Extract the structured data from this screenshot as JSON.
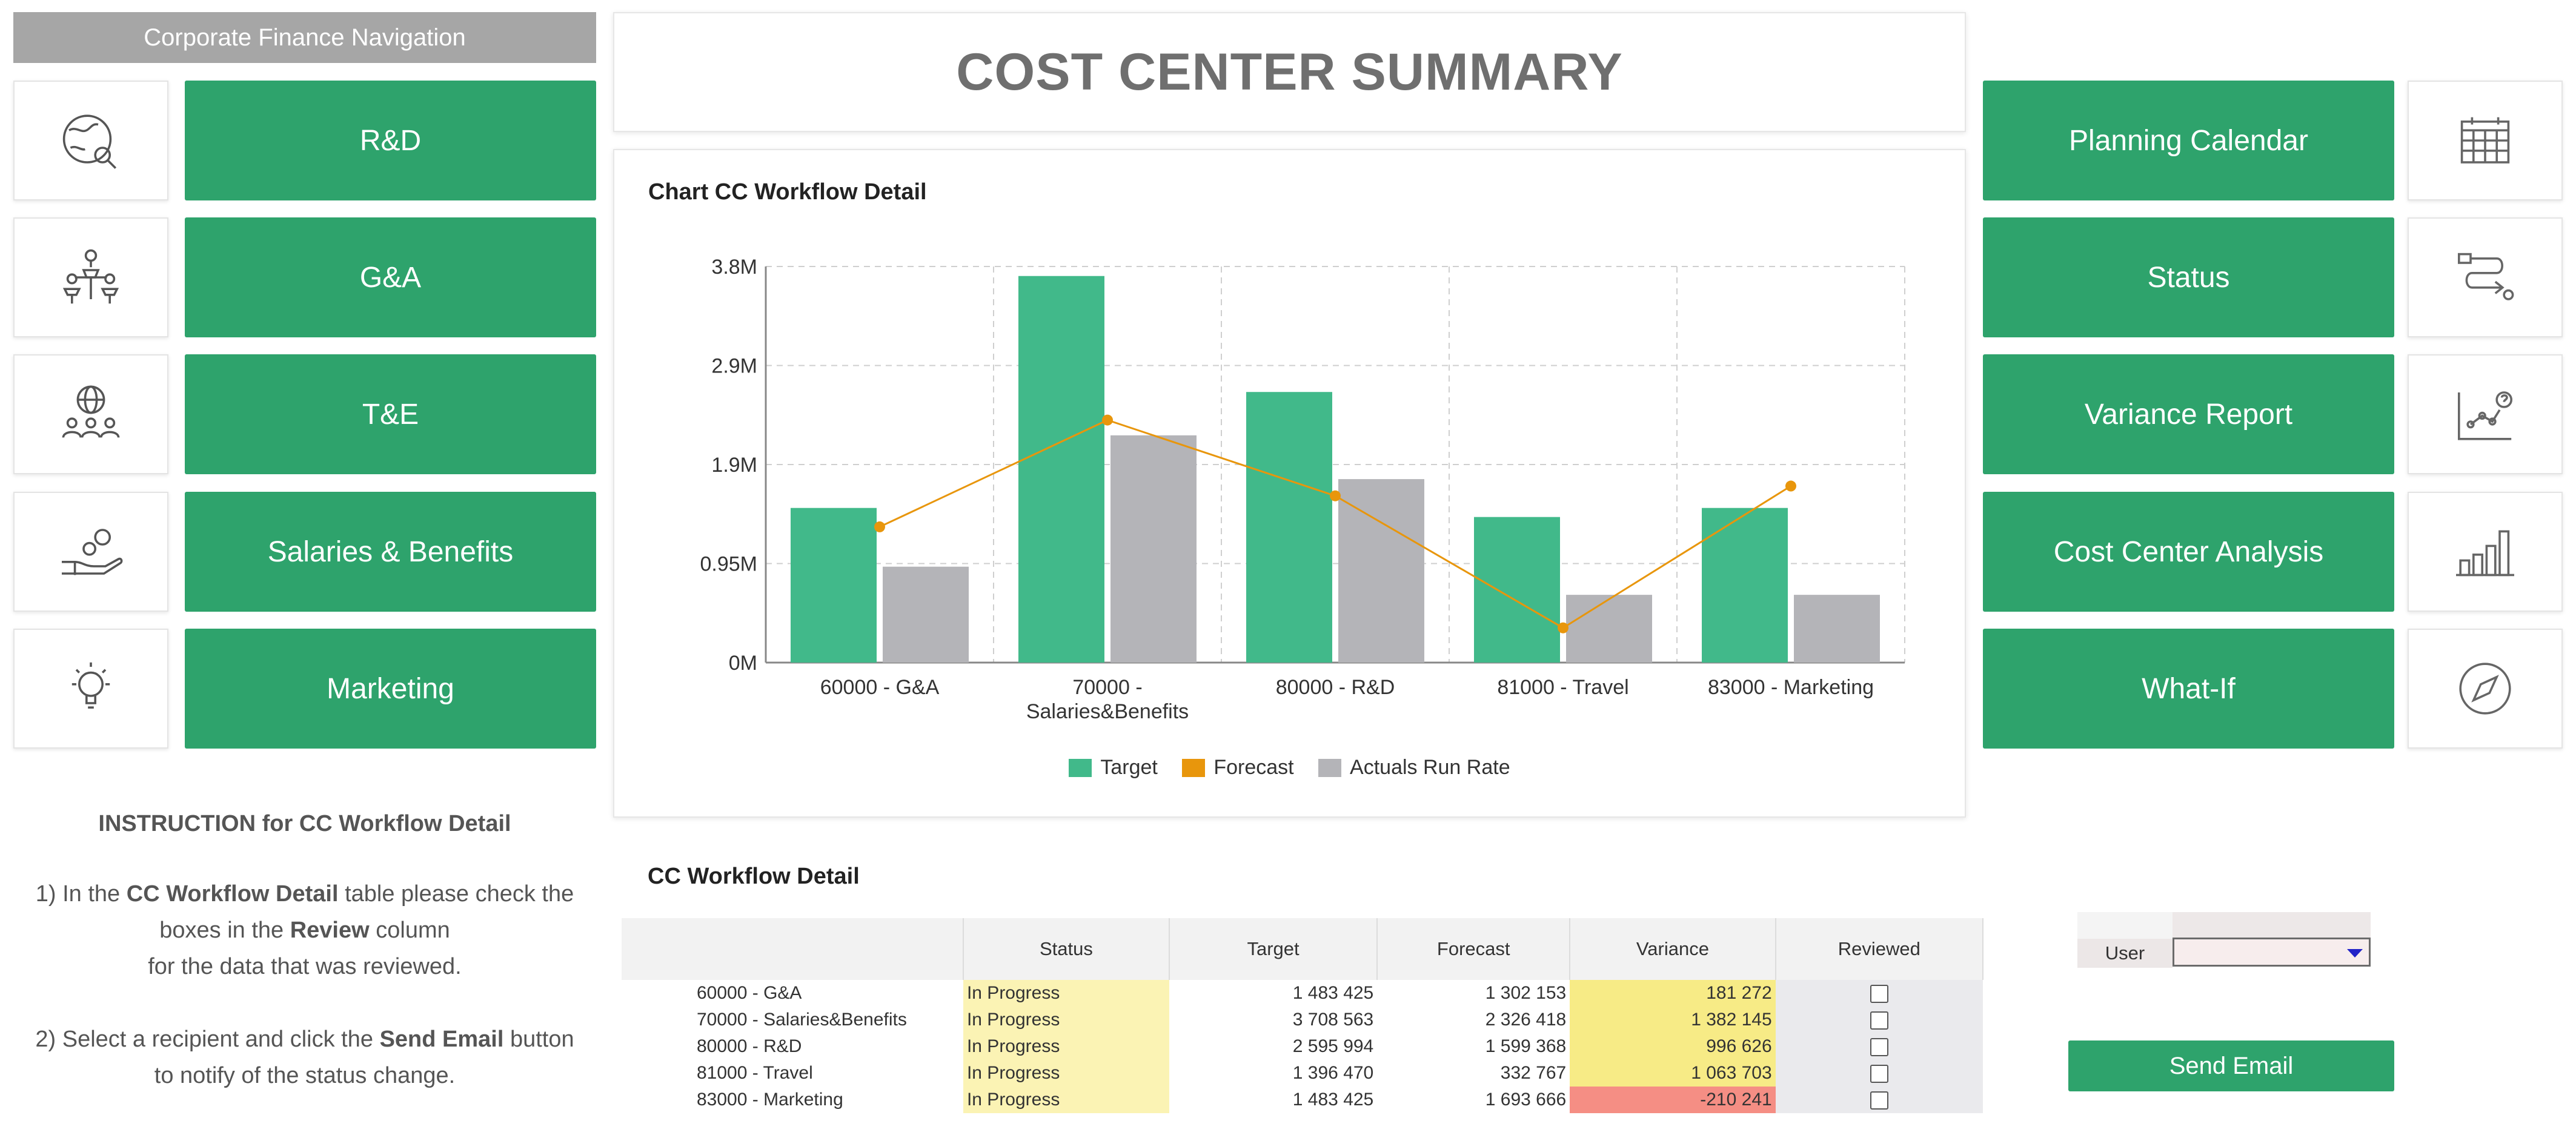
{
  "nav": {
    "header": "Corporate Finance Navigation",
    "left_items": [
      {
        "label": "R&D",
        "icon": "globe-search-icon"
      },
      {
        "label": "G&A",
        "icon": "org-structure-icon"
      },
      {
        "label": "T&E",
        "icon": "globe-people-icon"
      },
      {
        "label": "Salaries & Benefits",
        "icon": "hand-coins-icon"
      },
      {
        "label": "Marketing",
        "icon": "lightbulb-icon"
      }
    ],
    "right_items": [
      {
        "label": "Planning Calendar",
        "icon": "calendar-icon"
      },
      {
        "label": "Status",
        "icon": "workflow-path-icon"
      },
      {
        "label": "Variance Report",
        "icon": "line-chart-question-icon"
      },
      {
        "label": "Cost Center Analysis",
        "icon": "bar-chart-icon"
      },
      {
        "label": "What-If",
        "icon": "compass-icon"
      }
    ]
  },
  "page": {
    "title": "COST CENTER SUMMARY"
  },
  "chart_panel": {
    "title": "Chart CC Workflow Detail"
  },
  "chart_data": {
    "type": "bar",
    "title": "Chart CC Workflow Detail",
    "categories": [
      "60000 - G&A",
      "70000 - Salaries&Benefits",
      "80000 - R&D",
      "81000 - Travel",
      "83000 - Marketing"
    ],
    "category_lines": [
      [
        "60000 - G&A"
      ],
      [
        "70000 -",
        "Salaries&Benefits"
      ],
      [
        "80000 - R&D"
      ],
      [
        "81000 - Travel"
      ],
      [
        "83000 - Marketing"
      ]
    ],
    "series": [
      {
        "name": "Target",
        "kind": "bar",
        "color": "#41b98a",
        "values": [
          1483425,
          3708563,
          2595994,
          1396470,
          1483425
        ]
      },
      {
        "name": "Forecast",
        "kind": "line",
        "color": "#e8960c",
        "values": [
          1302153,
          2326418,
          1599368,
          332767,
          1693666
        ]
      },
      {
        "name": "Actuals Run Rate",
        "kind": "bar",
        "color": "#b4b4b8",
        "values": [
          920000,
          2180000,
          1760000,
          650000,
          650000
        ]
      }
    ],
    "yticks": [
      0,
      950000,
      1900000,
      2850000,
      3800000
    ],
    "ytick_labels": [
      "0M",
      "0.95M",
      "1.9M",
      "2.9M",
      "3.8M"
    ],
    "ylim": [
      0,
      3800000
    ],
    "grid": true,
    "legend": "bottom-center"
  },
  "instructions": {
    "heading": "INSTRUCTION for CC Workflow Detail",
    "s1_a": "1) In the ",
    "s1_b": "CC Workflow Detail",
    "s1_c": " table please check the",
    "s1_d": "boxes in the ",
    "s1_e": "Review",
    "s1_f": " column",
    "s1_g": "for the data that was reviewed.",
    "s2_a": "2) Select a recipient and click the ",
    "s2_b": "Send Email",
    "s2_c": " button",
    "s2_d": "to notify of the status change."
  },
  "table": {
    "title": "CC Workflow Detail",
    "headers": [
      "",
      "Status",
      "Target",
      "Forecast",
      "Variance",
      "Reviewed"
    ],
    "rows": [
      {
        "cc": "60000 - G&A",
        "status": "In Progress",
        "target": "1 483 425",
        "forecast": "1 302 153",
        "variance": "181 272",
        "negative": false,
        "reviewed": false
      },
      {
        "cc": "70000 - Salaries&Benefits",
        "status": "In Progress",
        "target": "3 708 563",
        "forecast": "2 326 418",
        "variance": "1 382 145",
        "negative": false,
        "reviewed": false
      },
      {
        "cc": "80000 - R&D",
        "status": "In Progress",
        "target": "2 595 994",
        "forecast": "1 599 368",
        "variance": "996 626",
        "negative": false,
        "reviewed": false
      },
      {
        "cc": "81000 - Travel",
        "status": "In Progress",
        "target": "1 396 470",
        "forecast": "332 767",
        "variance": "1 063 703",
        "negative": false,
        "reviewed": false
      },
      {
        "cc": "83000 - Marketing",
        "status": "In Progress",
        "target": "1 483 425",
        "forecast": "1 693 666",
        "variance": "-210 241",
        "negative": true,
        "reviewed": false
      }
    ]
  },
  "user_select": {
    "label": "User",
    "value": ""
  },
  "send_email": {
    "label": "Send Email"
  },
  "colors": {
    "accent_green": "#2ea36c",
    "variance_positive": "#f7eb86",
    "variance_negative": "#f58e84",
    "status_fill": "#fbf3b4"
  }
}
